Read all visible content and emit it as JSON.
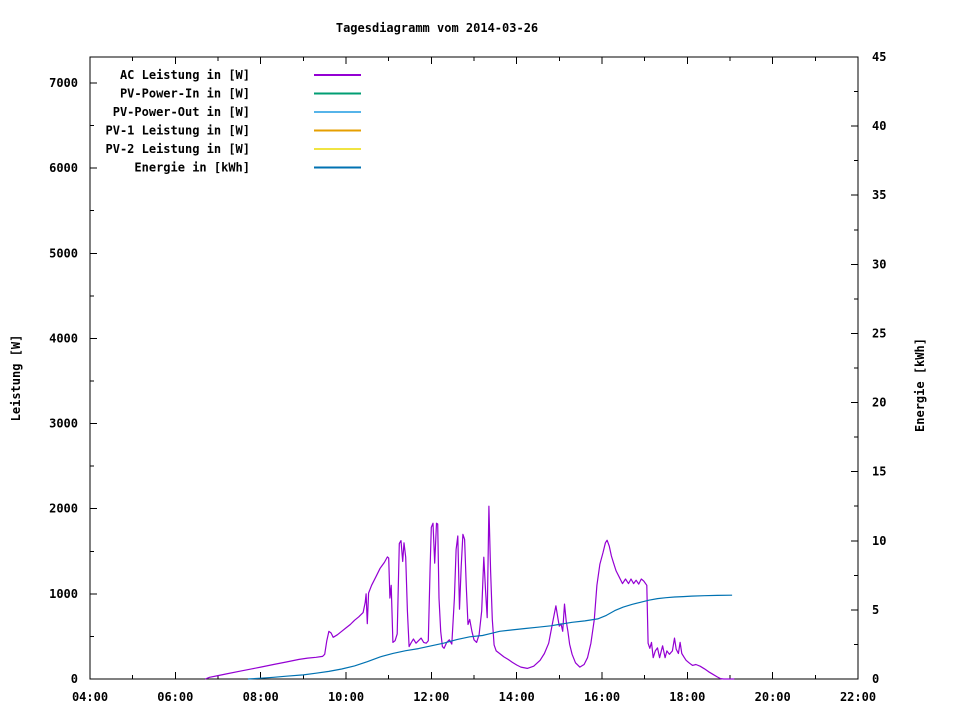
{
  "colors": {
    "background": "#ffffff",
    "axis": "#000000"
  },
  "chart_data": {
    "type": "line",
    "title": "Tagesdiagramm vom 2014-03-26",
    "grid": "off",
    "legend_position": "top-left-inside",
    "x_axis": {
      "range_hours": [
        4,
        22
      ],
      "tick_hours": [
        4,
        6,
        8,
        10,
        12,
        14,
        16,
        18,
        20,
        22
      ],
      "tick_labels": [
        "04:00",
        "06:00",
        "08:00",
        "10:00",
        "12:00",
        "14:00",
        "16:00",
        "18:00",
        "20:00",
        "22:00"
      ],
      "minor_step_hours": 1
    },
    "y_left": {
      "label": "Leistung [W]",
      "range": [
        0,
        7300
      ],
      "tick_values": [
        0,
        1000,
        2000,
        3000,
        4000,
        5000,
        6000,
        7000
      ],
      "tick_labels": [
        "0",
        "1000",
        "2000",
        "3000",
        "4000",
        "5000",
        "6000",
        "7000"
      ],
      "minor_step": 500
    },
    "y_right": {
      "label": "Energie [kWh]",
      "range": [
        0,
        45
      ],
      "tick_values": [
        0,
        5,
        10,
        15,
        20,
        25,
        30,
        35,
        40,
        45
      ],
      "tick_labels": [
        "0",
        "5",
        "10",
        "15",
        "20",
        "25",
        "30",
        "35",
        "40",
        "45"
      ],
      "minor_step": 2.5
    },
    "legend": [
      {
        "label": "AC Leistung in [W]",
        "color": "#9400d3"
      },
      {
        "label": "PV-Power-In in [W]",
        "color": "#009e73"
      },
      {
        "label": "PV-Power-Out in [W]",
        "color": "#56b4e9"
      },
      {
        "label": "PV-1 Leistung in [W]",
        "color": "#e69f00"
      },
      {
        "label": "PV-2 Leistung in [W]",
        "color": "#f0e442"
      },
      {
        "label": "Energie in [kWh]",
        "color": "#0072b2"
      }
    ],
    "series": [
      {
        "id": "ac",
        "name": "AC Leistung in [W]",
        "color": "#9400d3",
        "axis": "left",
        "points": [
          [
            6.7,
            0
          ],
          [
            6.8,
            20
          ],
          [
            7.0,
            40
          ],
          [
            7.2,
            60
          ],
          [
            7.5,
            90
          ],
          [
            7.8,
            120
          ],
          [
            8.0,
            140
          ],
          [
            8.3,
            170
          ],
          [
            8.6,
            200
          ],
          [
            8.9,
            230
          ],
          [
            9.1,
            245
          ],
          [
            9.3,
            255
          ],
          [
            9.45,
            265
          ],
          [
            9.5,
            290
          ],
          [
            9.55,
            450
          ],
          [
            9.6,
            560
          ],
          [
            9.65,
            540
          ],
          [
            9.7,
            490
          ],
          [
            9.8,
            520
          ],
          [
            9.9,
            560
          ],
          [
            10.0,
            600
          ],
          [
            10.1,
            640
          ],
          [
            10.2,
            690
          ],
          [
            10.3,
            730
          ],
          [
            10.4,
            780
          ],
          [
            10.45,
            900
          ],
          [
            10.47,
            1000
          ],
          [
            10.5,
            650
          ],
          [
            10.53,
            1010
          ],
          [
            10.6,
            1100
          ],
          [
            10.7,
            1200
          ],
          [
            10.8,
            1300
          ],
          [
            10.9,
            1370
          ],
          [
            10.97,
            1434
          ],
          [
            11.0,
            1420
          ],
          [
            11.03,
            950
          ],
          [
            11.06,
            1100
          ],
          [
            11.1,
            430
          ],
          [
            11.15,
            450
          ],
          [
            11.2,
            530
          ],
          [
            11.25,
            1590
          ],
          [
            11.29,
            1625
          ],
          [
            11.33,
            1380
          ],
          [
            11.36,
            1600
          ],
          [
            11.4,
            1430
          ],
          [
            11.44,
            800
          ],
          [
            11.48,
            380
          ],
          [
            11.52,
            420
          ],
          [
            11.58,
            470
          ],
          [
            11.64,
            420
          ],
          [
            11.7,
            450
          ],
          [
            11.76,
            480
          ],
          [
            11.82,
            430
          ],
          [
            11.88,
            420
          ],
          [
            11.93,
            450
          ],
          [
            11.97,
            1300
          ],
          [
            12.0,
            1780
          ],
          [
            12.04,
            1830
          ],
          [
            12.08,
            1360
          ],
          [
            12.12,
            1830
          ],
          [
            12.15,
            1820
          ],
          [
            12.18,
            950
          ],
          [
            12.22,
            560
          ],
          [
            12.26,
            380
          ],
          [
            12.3,
            360
          ],
          [
            12.36,
            430
          ],
          [
            12.42,
            460
          ],
          [
            12.48,
            410
          ],
          [
            12.54,
            950
          ],
          [
            12.58,
            1520
          ],
          [
            12.62,
            1680
          ],
          [
            12.66,
            820
          ],
          [
            12.7,
            1320
          ],
          [
            12.74,
            1700
          ],
          [
            12.78,
            1640
          ],
          [
            12.82,
            1080
          ],
          [
            12.86,
            640
          ],
          [
            12.9,
            700
          ],
          [
            12.95,
            560
          ],
          [
            13.0,
            460
          ],
          [
            13.06,
            430
          ],
          [
            13.12,
            520
          ],
          [
            13.18,
            800
          ],
          [
            13.23,
            1430
          ],
          [
            13.27,
            1050
          ],
          [
            13.31,
            720
          ],
          [
            13.35,
            2030
          ],
          [
            13.39,
            1270
          ],
          [
            13.43,
            700
          ],
          [
            13.47,
            400
          ],
          [
            13.52,
            330
          ],
          [
            13.6,
            300
          ],
          [
            13.7,
            260
          ],
          [
            13.8,
            230
          ],
          [
            13.9,
            195
          ],
          [
            14.0,
            165
          ],
          [
            14.1,
            140
          ],
          [
            14.25,
            125
          ],
          [
            14.4,
            150
          ],
          [
            14.55,
            220
          ],
          [
            14.65,
            300
          ],
          [
            14.75,
            420
          ],
          [
            14.85,
            680
          ],
          [
            14.92,
            860
          ],
          [
            14.97,
            700
          ],
          [
            15.0,
            620
          ],
          [
            15.04,
            650
          ],
          [
            15.08,
            560
          ],
          [
            15.12,
            880
          ],
          [
            15.16,
            680
          ],
          [
            15.2,
            560
          ],
          [
            15.24,
            410
          ],
          [
            15.3,
            290
          ],
          [
            15.38,
            190
          ],
          [
            15.48,
            140
          ],
          [
            15.58,
            170
          ],
          [
            15.66,
            250
          ],
          [
            15.74,
            420
          ],
          [
            15.82,
            700
          ],
          [
            15.88,
            1100
          ],
          [
            15.95,
            1350
          ],
          [
            16.02,
            1480
          ],
          [
            16.08,
            1600
          ],
          [
            16.12,
            1630
          ],
          [
            16.17,
            1560
          ],
          [
            16.22,
            1445
          ],
          [
            16.27,
            1365
          ],
          [
            16.33,
            1270
          ],
          [
            16.4,
            1200
          ],
          [
            16.48,
            1120
          ],
          [
            16.55,
            1175
          ],
          [
            16.62,
            1120
          ],
          [
            16.68,
            1175
          ],
          [
            16.74,
            1120
          ],
          [
            16.8,
            1160
          ],
          [
            16.86,
            1115
          ],
          [
            16.92,
            1175
          ],
          [
            16.98,
            1150
          ],
          [
            17.05,
            1100
          ],
          [
            17.08,
            420
          ],
          [
            17.12,
            360
          ],
          [
            17.16,
            430
          ],
          [
            17.2,
            250
          ],
          [
            17.25,
            330
          ],
          [
            17.3,
            365
          ],
          [
            17.35,
            250
          ],
          [
            17.42,
            390
          ],
          [
            17.48,
            250
          ],
          [
            17.52,
            330
          ],
          [
            17.58,
            290
          ],
          [
            17.65,
            330
          ],
          [
            17.7,
            480
          ],
          [
            17.74,
            350
          ],
          [
            17.79,
            300
          ],
          [
            17.83,
            430
          ],
          [
            17.87,
            300
          ],
          [
            17.92,
            260
          ],
          [
            17.97,
            220
          ],
          [
            18.05,
            185
          ],
          [
            18.12,
            160
          ],
          [
            18.2,
            170
          ],
          [
            18.3,
            150
          ],
          [
            18.4,
            120
          ],
          [
            18.5,
            85
          ],
          [
            18.6,
            55
          ],
          [
            18.7,
            25
          ],
          [
            18.78,
            5
          ],
          [
            18.85,
            0
          ],
          [
            19.1,
            0
          ]
        ]
      },
      {
        "id": "energie",
        "name": "Energie in [kWh]",
        "color": "#0072b2",
        "axis": "right",
        "points": [
          [
            7.7,
            0
          ],
          [
            8.0,
            0.06
          ],
          [
            8.3,
            0.12
          ],
          [
            8.6,
            0.2
          ],
          [
            9.0,
            0.3
          ],
          [
            9.3,
            0.42
          ],
          [
            9.6,
            0.55
          ],
          [
            9.9,
            0.72
          ],
          [
            10.2,
            0.95
          ],
          [
            10.5,
            1.25
          ],
          [
            10.8,
            1.6
          ],
          [
            11.1,
            1.85
          ],
          [
            11.4,
            2.05
          ],
          [
            11.7,
            2.2
          ],
          [
            12.0,
            2.4
          ],
          [
            12.3,
            2.6
          ],
          [
            12.6,
            2.85
          ],
          [
            12.9,
            3.05
          ],
          [
            13.2,
            3.15
          ],
          [
            13.4,
            3.3
          ],
          [
            13.6,
            3.45
          ],
          [
            13.9,
            3.55
          ],
          [
            14.2,
            3.65
          ],
          [
            14.5,
            3.75
          ],
          [
            14.8,
            3.85
          ],
          [
            15.0,
            3.95
          ],
          [
            15.3,
            4.1
          ],
          [
            15.6,
            4.2
          ],
          [
            15.9,
            4.35
          ],
          [
            16.1,
            4.6
          ],
          [
            16.3,
            4.95
          ],
          [
            16.5,
            5.2
          ],
          [
            16.7,
            5.4
          ],
          [
            16.9,
            5.55
          ],
          [
            17.1,
            5.7
          ],
          [
            17.3,
            5.82
          ],
          [
            17.5,
            5.88
          ],
          [
            17.7,
            5.93
          ],
          [
            17.9,
            5.96
          ],
          [
            18.1,
            6.0
          ],
          [
            18.4,
            6.03
          ],
          [
            18.7,
            6.05
          ],
          [
            19.05,
            6.06
          ]
        ]
      }
    ]
  }
}
